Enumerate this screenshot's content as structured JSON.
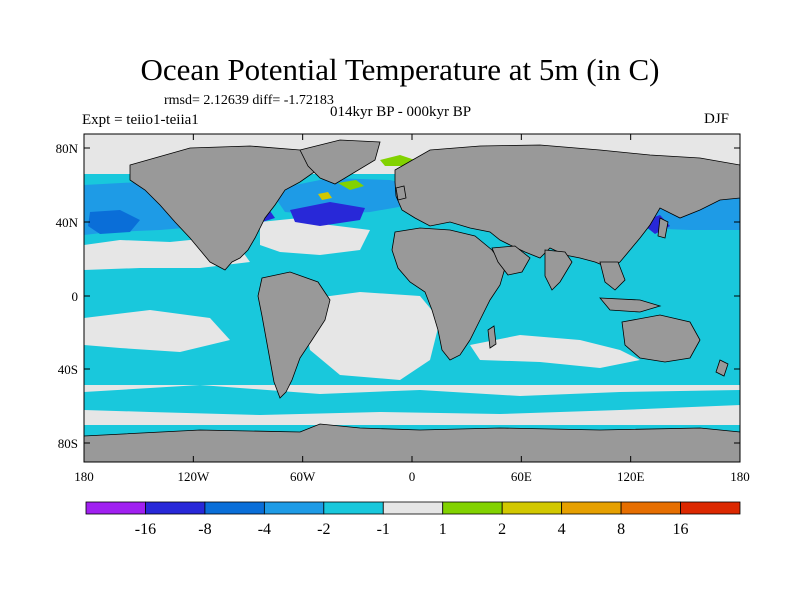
{
  "title": "Ocean Potential Temperature at 5m (in C)",
  "stats": "rmsd= 2.12639 diff= -1.72183",
  "experiment": "Expt = teiio1-teiia1",
  "period": "014kyr BP - 000kyr BP",
  "season": "DJF",
  "colors": {
    "land": "#999999",
    "coast": "#000000",
    "neutral": "#e6e6e6"
  },
  "axes": {
    "x_ticks": [
      "180",
      "120W",
      "60W",
      "0",
      "60E",
      "120E",
      "180"
    ],
    "y_ticks": [
      "80N",
      "40N",
      "0",
      "40S",
      "80S"
    ]
  },
  "legend": {
    "colors": [
      "#a020f0",
      "#2828d8",
      "#0a6ed8",
      "#1e9be6",
      "#19c8dc",
      "#e6e6e6",
      "#82d200",
      "#d2c800",
      "#e6a000",
      "#e66e00",
      "#dc2800"
    ],
    "labels": [
      "-16",
      "-8",
      "-4",
      "-2",
      "-1",
      "1",
      "2",
      "4",
      "8",
      "16"
    ]
  }
}
